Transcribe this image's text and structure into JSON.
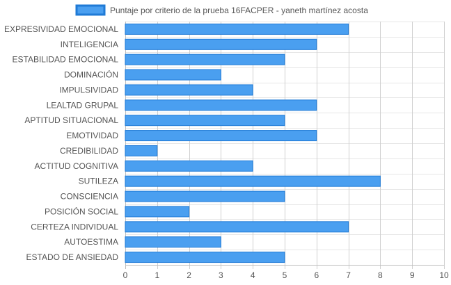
{
  "chart_data": {
    "type": "bar",
    "orientation": "horizontal",
    "categories": [
      "EXPRESIVIDAD EMOCIONAL",
      "INTELIGENCIA",
      "ESTABILIDAD EMOCIONAL",
      "DOMINACIÓN",
      "IMPULSIVIDAD",
      "LEALTAD GRUPAL",
      "APTITUD SITUACIONAL",
      "EMOTIVIDAD",
      "CREDIBILIDAD",
      "ACTITUD COGNITIVA",
      "SUTILEZA",
      "CONSCIENCIA",
      "POSICIÓN SOCIAL",
      "CERTEZA INDIVIDUAL",
      "AUTOESTIMA",
      "ESTADO DE ANSIEDAD"
    ],
    "series": [
      {
        "name": "Puntaje por criterio de la prueba 16FACPER - yaneth martínez acosta",
        "values": [
          7,
          6,
          5,
          3,
          4,
          6,
          5,
          6,
          1,
          4,
          8,
          5,
          2,
          7,
          3,
          5
        ],
        "color": "#4a9ff0",
        "border_color": "#1f7ad6"
      }
    ],
    "xlim": [
      0,
      10
    ],
    "xticks": [
      "0",
      "1",
      "2",
      "3",
      "4",
      "5",
      "6",
      "7",
      "8",
      "9",
      "10"
    ],
    "grid": true,
    "legend_position": "top"
  }
}
